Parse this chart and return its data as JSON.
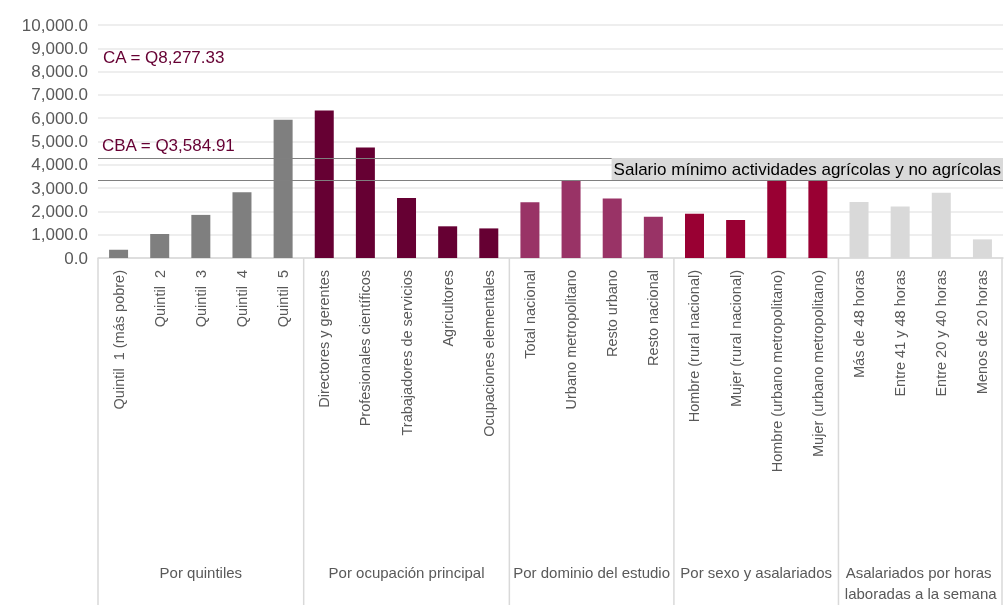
{
  "chart_data": {
    "type": "bar",
    "categories": [
      "Quintil  1 (más pobre)",
      "Quintil  2",
      "Quintil  3",
      "Quintil  4",
      "Quintil  5",
      "Directores y gerentes",
      "Profesionales científicos",
      "Trabajadores de servicios",
      "Agricultores",
      "Ocupaciones elementales",
      "Total nacional",
      "Urbano metropolitano",
      "Resto urbano",
      "Resto nacional",
      "Hombre (rural nacional)",
      "Mujer (rural nacional)",
      "Hombre (urbano metropolitano)",
      "Mujer (urbano metropolitano)",
      "Más de 48 horas",
      "Entre 41 y 48 horas",
      "Entre 20 y 40 horas",
      "Menos de 20 horas"
    ],
    "values": [
      350,
      1030,
      1850,
      2820,
      5930,
      6330,
      4740,
      2580,
      1360,
      1270,
      2390,
      3300,
      2550,
      1770,
      1900,
      1630,
      3300,
      3300,
      2400,
      2210,
      2800,
      800
    ],
    "colors": [
      "#7f7f7f",
      "#7f7f7f",
      "#7f7f7f",
      "#7f7f7f",
      "#7f7f7f",
      "#660033",
      "#660033",
      "#660033",
      "#660033",
      "#660033",
      "#993366",
      "#993366",
      "#993366",
      "#993366",
      "#990033",
      "#990033",
      "#990033",
      "#990033",
      "#d9d9d9",
      "#d9d9d9",
      "#d9d9d9",
      "#d9d9d9"
    ],
    "ylim": [
      0,
      10000
    ],
    "yticks": [
      {
        "value": 0,
        "label": "0.0"
      },
      {
        "value": 1000,
        "label": "1,000.0"
      },
      {
        "value": 2000,
        "label": "2,000.0"
      },
      {
        "value": 3000,
        "label": "3,000.0"
      },
      {
        "value": 4000,
        "label": "4,000.0"
      },
      {
        "value": 5000,
        "label": "5,000.0"
      },
      {
        "value": 6000,
        "label": "6,000.0"
      },
      {
        "value": 7000,
        "label": "7,000.0"
      },
      {
        "value": 8000,
        "label": "8,000.0"
      },
      {
        "value": 9000,
        "label": "9,000.0"
      },
      {
        "value": 10000,
        "label": "10,000.0"
      }
    ],
    "grid": "y",
    "ref_lines": [
      {
        "axis": "y",
        "value": 4290,
        "label": "CBA = Q3,584.91",
        "color": "#808080"
      },
      {
        "axis": "y",
        "value": 3350,
        "label": "Salario mínimo actividades agrícolas y no agrícolas",
        "color": "#808080"
      }
    ],
    "annotations": [
      "CA = Q8,277.33",
      "Por quintiles",
      "Por ocupación principal",
      "Por dominio del estudio",
      "Por sexo y asalariados",
      "Asalariados por horas laboradas a la semana"
    ]
  }
}
